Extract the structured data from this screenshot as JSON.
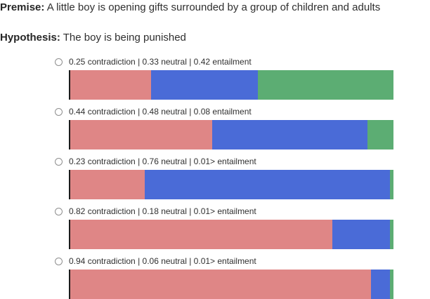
{
  "premise": {
    "label": "Premise:",
    "text": "A little boy is opening gifts surrounded by a group of children and adults"
  },
  "hypothesis": {
    "label": "Hypothesis:",
    "text": "The boy is being punished"
  },
  "colors": {
    "contradiction": "#df8686",
    "neutral": "#4a6bd7",
    "entailment": "#5cad73",
    "axis": "#1c1c1c"
  },
  "options": [
    {
      "label": "0.25 contradiction | 0.33 neutral | 0.42 entailment",
      "contradiction": 0.25,
      "neutral": 0.33,
      "entailment": 0.42,
      "selected": false
    },
    {
      "label": "0.44 contradiction | 0.48 neutral | 0.08 entailment",
      "contradiction": 0.44,
      "neutral": 0.48,
      "entailment": 0.08,
      "selected": false
    },
    {
      "label": "0.23 contradiction | 0.76 neutral | 0.01> entailment",
      "contradiction": 0.23,
      "neutral": 0.76,
      "entailment": 0.01,
      "selected": false
    },
    {
      "label": "0.82 contradiction | 0.18 neutral | 0.01> entailment",
      "contradiction": 0.82,
      "neutral": 0.18,
      "entailment": 0.01,
      "selected": false
    },
    {
      "label": "0.94 contradiction | 0.06 neutral | 0.01> entailment",
      "contradiction": 0.94,
      "neutral": 0.06,
      "entailment": 0.01,
      "selected": false
    }
  ],
  "chart_data": [
    {
      "type": "bar",
      "orientation": "horizontal-stacked",
      "categories": [
        "contradiction",
        "neutral",
        "entailment"
      ],
      "values": [
        0.25,
        0.33,
        0.42
      ],
      "xlim": [
        0,
        1
      ]
    },
    {
      "type": "bar",
      "orientation": "horizontal-stacked",
      "categories": [
        "contradiction",
        "neutral",
        "entailment"
      ],
      "values": [
        0.44,
        0.48,
        0.08
      ],
      "xlim": [
        0,
        1
      ]
    },
    {
      "type": "bar",
      "orientation": "horizontal-stacked",
      "categories": [
        "contradiction",
        "neutral",
        "entailment"
      ],
      "values": [
        0.23,
        0.76,
        0.01
      ],
      "xlim": [
        0,
        1
      ]
    },
    {
      "type": "bar",
      "orientation": "horizontal-stacked",
      "categories": [
        "contradiction",
        "neutral",
        "entailment"
      ],
      "values": [
        0.82,
        0.18,
        0.01
      ],
      "xlim": [
        0,
        1
      ]
    },
    {
      "type": "bar",
      "orientation": "horizontal-stacked",
      "categories": [
        "contradiction",
        "neutral",
        "entailment"
      ],
      "values": [
        0.94,
        0.06,
        0.01
      ],
      "xlim": [
        0,
        1
      ]
    }
  ]
}
